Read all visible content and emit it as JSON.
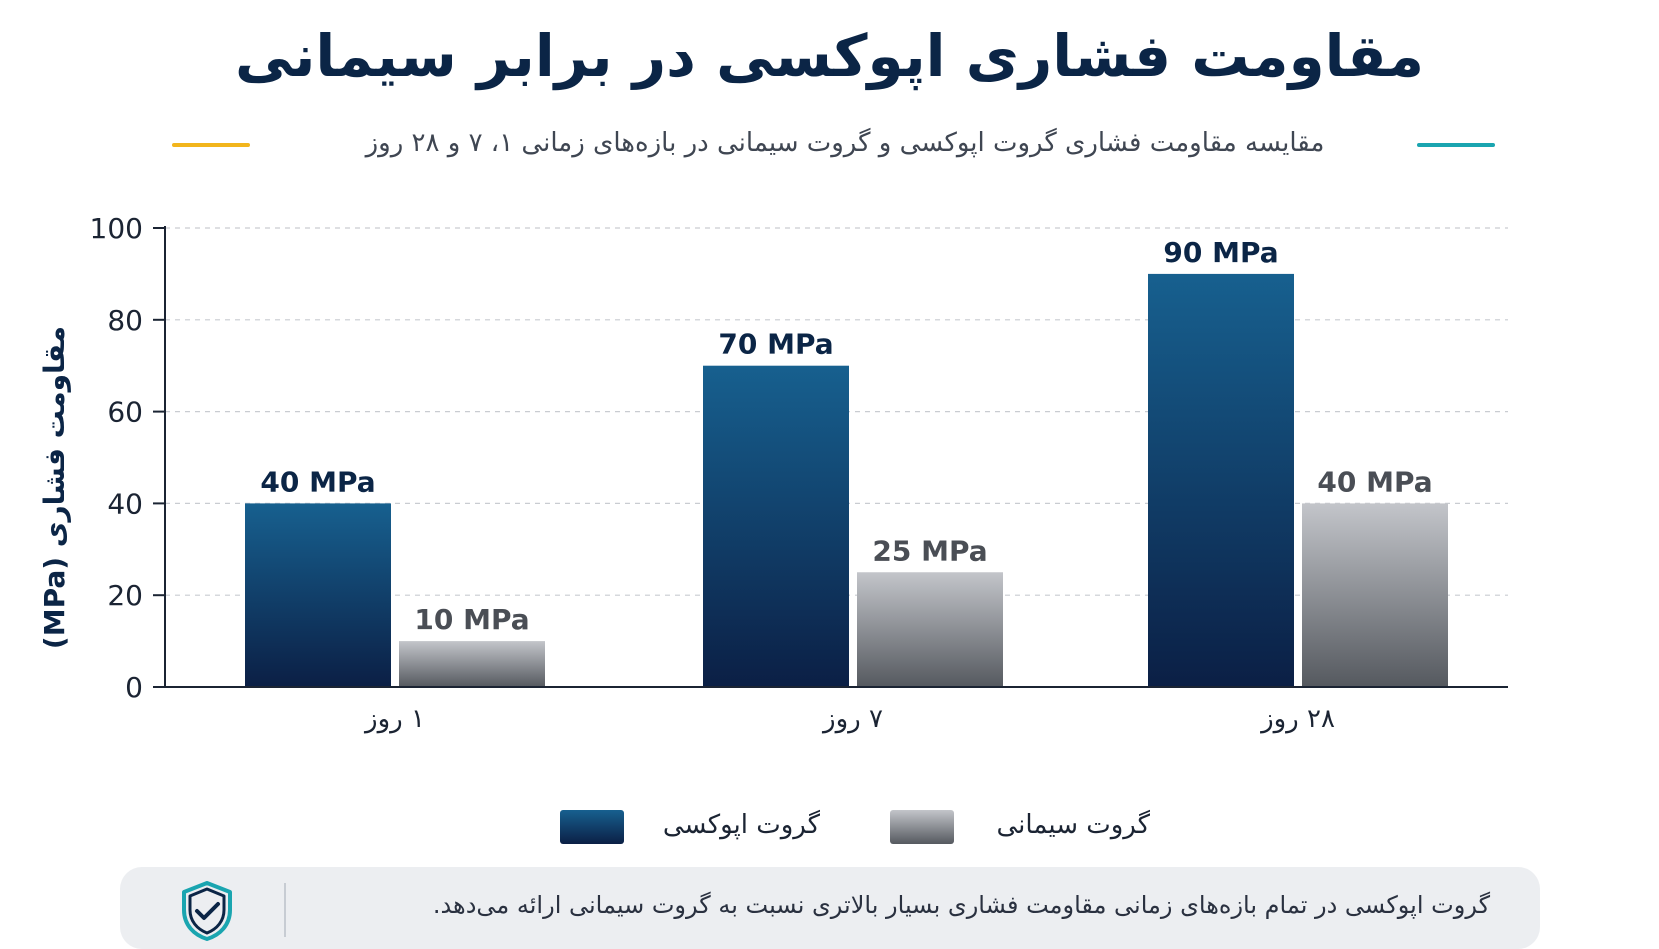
{
  "title": "مقاومت فشاری اپوکسی در برابر سیمانی",
  "subtitle": "مقایسه مقاومت فشاری گروت اپوکسی و گروت سیمانی در بازه‌های زمانی ۱، ۷ و ۲۸ روز",
  "colors": {
    "epoxy_top": "#17608f",
    "epoxy_bottom": "#0b1f45",
    "cement_top": "#c3c5ca",
    "cement_bottom": "#55595f",
    "accent_teal": "#1aa5b0",
    "accent_amber": "#f2b51c",
    "epoxy_label": "#0b2546",
    "cement_label": "#4a4e55"
  },
  "chart_data": {
    "type": "bar",
    "categories": [
      "۱ روز",
      "۷ روز",
      "۲۸ روز"
    ],
    "series": [
      {
        "name": "گروت اپوکسی",
        "values": [
          40,
          70,
          90
        ],
        "labels": [
          "40 MPa",
          "70 MPa",
          "90 MPa"
        ]
      },
      {
        "name": "گروت سیمانی",
        "values": [
          10,
          25,
          40
        ],
        "labels": [
          "10 MPa",
          "25 MPa",
          "40 MPa"
        ]
      }
    ],
    "ylabel": "مقاومت فشاری (MPa)",
    "ylim": [
      0,
      100
    ],
    "yticks": [
      "0",
      "20",
      "40",
      "60",
      "80",
      "100"
    ],
    "grid": true,
    "legend": "bottom"
  },
  "legend": {
    "epoxy_label": "گروت اپوکسی",
    "cement_label": "گروت سیمانی"
  },
  "note": {
    "text": "گروت اپوکسی در تمام بازه‌های زمانی مقاومت فشاری بسیار بالاتری نسبت به گروت سیمانی ارائه می‌دهد.",
    "icon": "shield-check-icon"
  }
}
